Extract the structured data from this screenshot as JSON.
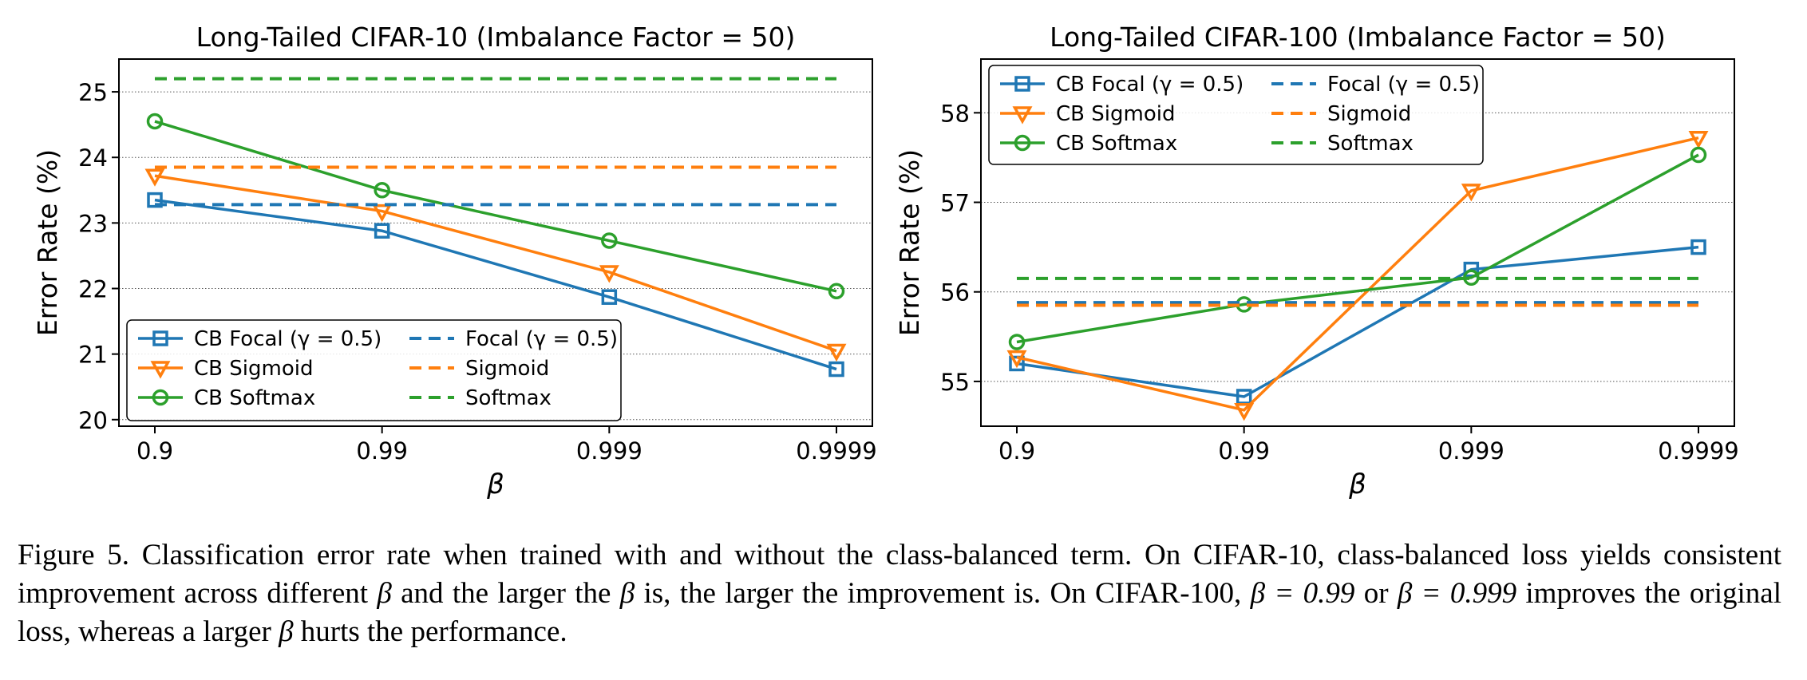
{
  "chart_data": [
    {
      "type": "line",
      "title": "Long-Tailed CIFAR-10 (Imbalance Factor = 50)",
      "xlabel": "β",
      "ylabel": "Error Rate (%)",
      "x_scale": "categorical",
      "categories": [
        "0.9",
        "0.99",
        "0.999",
        "0.9999"
      ],
      "ylim": [
        19.9,
        25.5
      ],
      "yticks": [
        20,
        21,
        22,
        23,
        24,
        25
      ],
      "grid": "horizontal dotted",
      "legend_position": "lower-left",
      "series": [
        {
          "name": "CB Focal (γ = 0.5)",
          "style": "line-marker",
          "marker": "square",
          "color": "#1f77b4",
          "values": [
            23.35,
            22.88,
            21.87,
            20.77
          ]
        },
        {
          "name": "CB Sigmoid",
          "style": "line-marker",
          "marker": "triangle-down",
          "color": "#ff7f0e",
          "values": [
            23.72,
            23.18,
            22.25,
            21.05
          ]
        },
        {
          "name": "CB Softmax",
          "style": "line-marker",
          "marker": "circle",
          "color": "#2ca02c",
          "values": [
            24.55,
            23.5,
            22.73,
            21.96
          ]
        },
        {
          "name": "Focal (γ = 0.5)",
          "style": "dashed",
          "color": "#1f77b4",
          "values": [
            23.28,
            23.28,
            23.28,
            23.28
          ]
        },
        {
          "name": "Sigmoid",
          "style": "dashed",
          "color": "#ff7f0e",
          "values": [
            23.85,
            23.85,
            23.85,
            23.85
          ]
        },
        {
          "name": "Softmax",
          "style": "dashed",
          "color": "#2ca02c",
          "values": [
            25.2,
            25.2,
            25.2,
            25.2
          ]
        }
      ]
    },
    {
      "type": "line",
      "title": "Long-Tailed CIFAR-100 (Imbalance Factor = 50)",
      "xlabel": "β",
      "ylabel": "Error Rate (%)",
      "x_scale": "categorical",
      "categories": [
        "0.9",
        "0.99",
        "0.999",
        "0.9999"
      ],
      "ylim": [
        54.5,
        58.6
      ],
      "yticks": [
        55,
        56,
        57,
        58
      ],
      "grid": "horizontal dotted",
      "legend_position": "upper-left",
      "series": [
        {
          "name": "CB Focal (γ = 0.5)",
          "style": "line-marker",
          "marker": "square",
          "color": "#1f77b4",
          "values": [
            55.2,
            54.83,
            56.25,
            56.5
          ]
        },
        {
          "name": "CB Sigmoid",
          "style": "line-marker",
          "marker": "triangle-down",
          "color": "#ff7f0e",
          "values": [
            55.27,
            54.68,
            57.13,
            57.72
          ]
        },
        {
          "name": "CB Softmax",
          "style": "line-marker",
          "marker": "circle",
          "color": "#2ca02c",
          "values": [
            55.44,
            55.86,
            56.16,
            57.53
          ]
        },
        {
          "name": "Focal (γ = 0.5)",
          "style": "dashed",
          "color": "#1f77b4",
          "values": [
            55.88,
            55.88,
            55.88,
            55.88
          ]
        },
        {
          "name": "Sigmoid",
          "style": "dashed",
          "color": "#ff7f0e",
          "values": [
            55.85,
            55.85,
            55.85,
            55.85
          ]
        },
        {
          "name": "Softmax",
          "style": "dashed",
          "color": "#2ca02c",
          "values": [
            56.15,
            56.15,
            56.15,
            56.15
          ]
        }
      ]
    }
  ],
  "caption": {
    "p1": "Figure 5. Classification error rate when trained with and without the class-balanced term.  On CIFAR-10, class-balanced loss yields consistent improvement across different ",
    "b1": "β",
    "p2": " and the larger the ",
    "b2": "β",
    "p3": " is, the larger the improvement is. On CIFAR-100, ",
    "eq1": "β = 0.99",
    "p4": " or ",
    "eq2": "β = 0.999",
    "p5": " improves the original loss, whereas a larger ",
    "b3": "β",
    "p6": " hurts the performance."
  }
}
